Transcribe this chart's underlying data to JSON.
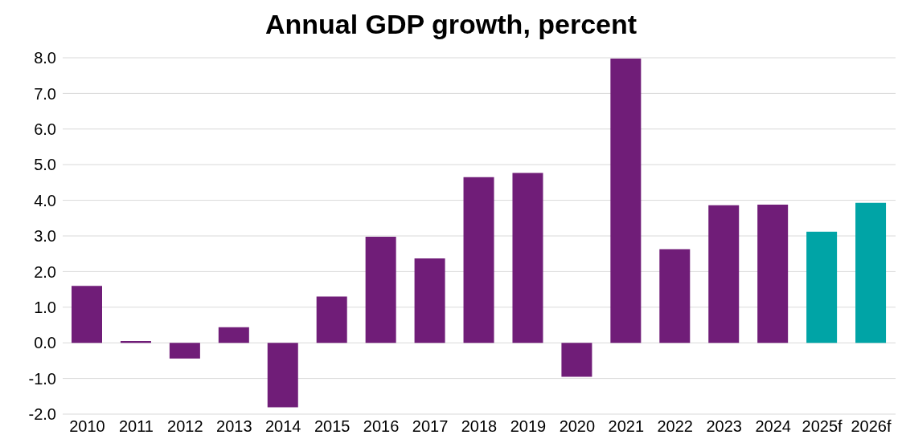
{
  "chart_data": {
    "type": "bar",
    "title": "Annual GDP growth, percent",
    "categories": [
      "2010",
      "2011",
      "2012",
      "2013",
      "2014",
      "2015",
      "2016",
      "2017",
      "2018",
      "2019",
      "2020",
      "2021",
      "2022",
      "2023",
      "2024",
      "2025f",
      "2026f"
    ],
    "values": [
      1.6,
      0.05,
      -0.44,
      0.44,
      -1.81,
      1.3,
      2.98,
      2.37,
      4.65,
      4.77,
      -0.95,
      7.98,
      2.63,
      3.86,
      3.88,
      3.12,
      3.93
    ],
    "colors": [
      "#701d78",
      "#701d78",
      "#701d78",
      "#701d78",
      "#701d78",
      "#701d78",
      "#701d78",
      "#701d78",
      "#701d78",
      "#701d78",
      "#701d78",
      "#701d78",
      "#701d78",
      "#701d78",
      "#701d78",
      "#00a4a6",
      "#00a4a6"
    ],
    "ylim": [
      -2,
      8
    ],
    "yticks": [
      {
        "value": -2,
        "label": "-2.0"
      },
      {
        "value": -1,
        "label": "-1.0"
      },
      {
        "value": 0,
        "label": "0.0"
      },
      {
        "value": 1,
        "label": "1.0"
      },
      {
        "value": 2,
        "label": "2.0"
      },
      {
        "value": 3,
        "label": "3.0"
      },
      {
        "value": 4,
        "label": "4.0"
      },
      {
        "value": 5,
        "label": "5.0"
      },
      {
        "value": 6,
        "label": "6.0"
      },
      {
        "value": 7,
        "label": "7.0"
      },
      {
        "value": 8,
        "label": "8.0"
      }
    ],
    "grid": "y"
  }
}
